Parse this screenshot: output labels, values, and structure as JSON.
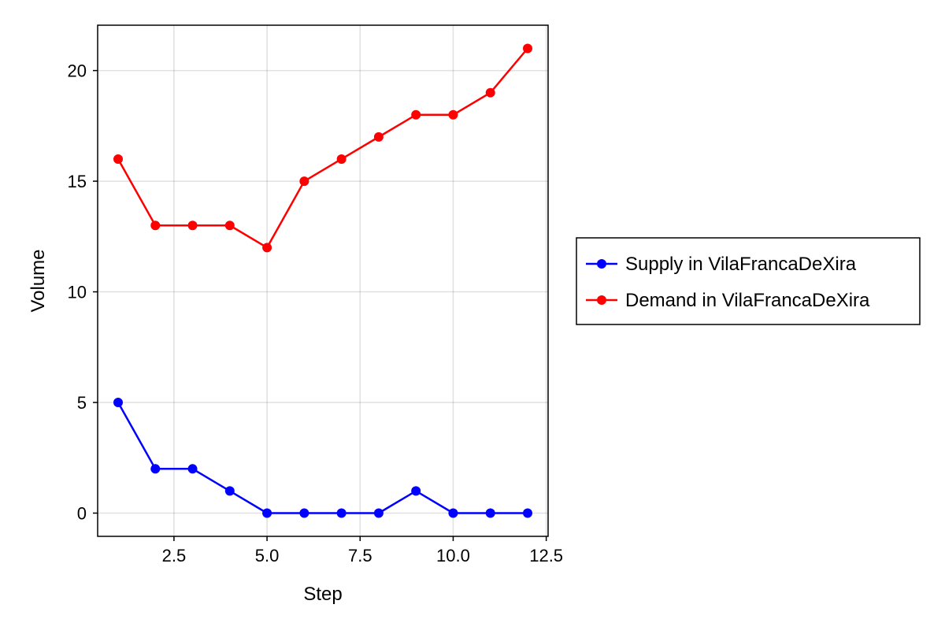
{
  "chart_data": {
    "type": "line",
    "title": "",
    "xlabel": "Step",
    "ylabel": "Volume",
    "xlim": [
      0.45,
      12.55
    ],
    "ylim": [
      -1.05,
      22.05
    ],
    "xticks": [
      2.5,
      5.0,
      7.5,
      10.0,
      12.5
    ],
    "xtick_labels": [
      "2.5",
      "5.0",
      "7.5",
      "10.0",
      "12.5"
    ],
    "yticks": [
      0,
      5,
      10,
      15,
      20
    ],
    "ytick_labels": [
      "0",
      "5",
      "10",
      "15",
      "20"
    ],
    "grid": true,
    "legend_position": "right",
    "x": [
      1,
      2,
      3,
      4,
      5,
      6,
      7,
      8,
      9,
      10,
      11,
      12
    ],
    "series": [
      {
        "name": "Supply in VilaFrancaDeXira",
        "color": "#0000ff",
        "values": [
          5,
          2,
          2,
          1,
          0,
          0,
          0,
          0,
          1,
          0,
          0,
          0
        ]
      },
      {
        "name": "Demand in VilaFrancaDeXira",
        "color": "#ff0000",
        "values": [
          16,
          13,
          13,
          13,
          12,
          15,
          16,
          17,
          18,
          18,
          19,
          21
        ]
      }
    ]
  }
}
